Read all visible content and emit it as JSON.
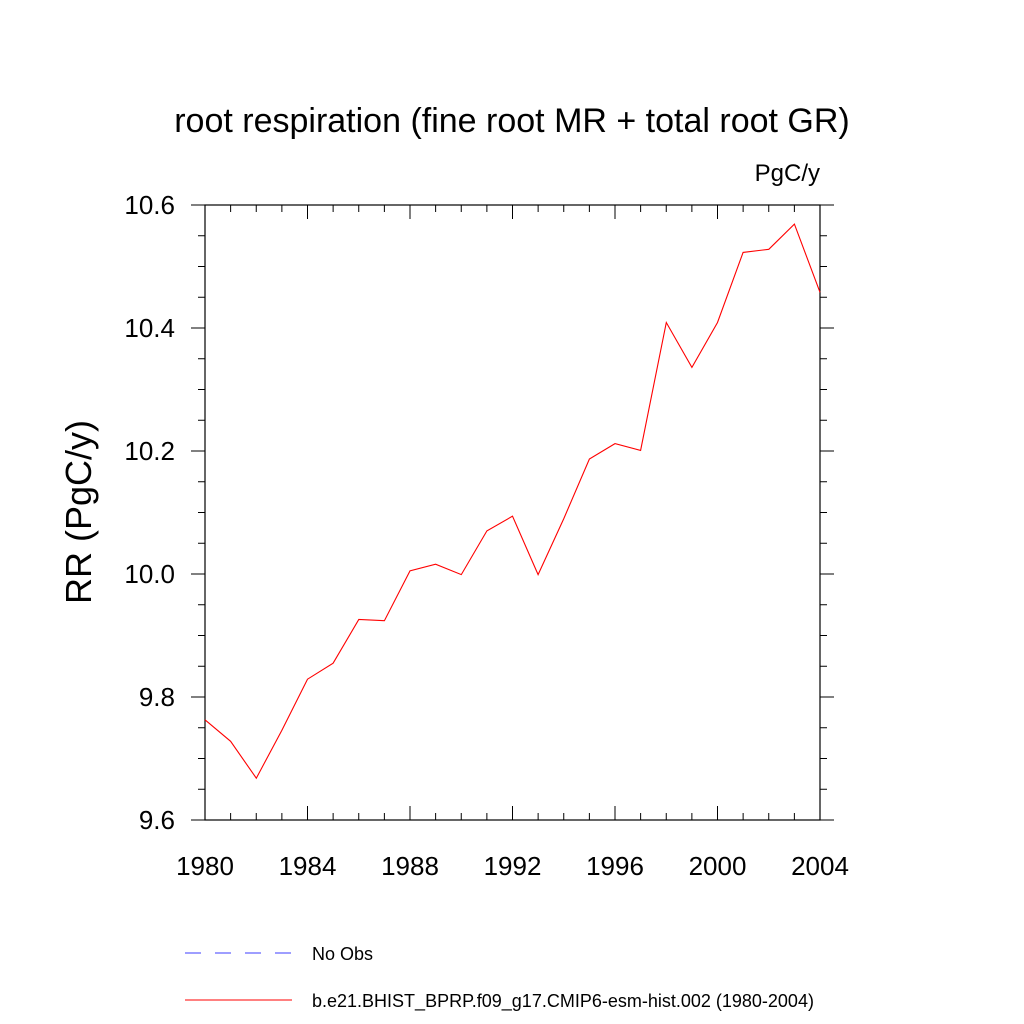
{
  "chart_data": {
    "type": "line",
    "title": "root respiration (fine root MR + total root GR)",
    "units": "PgC/y",
    "ylabel": "RR  (PgC/y)",
    "xlabel": "",
    "xlim": [
      1980,
      2004
    ],
    "ylim": [
      9.6,
      10.6
    ],
    "x_ticks": [
      1980,
      1984,
      1988,
      1992,
      1996,
      2000,
      2004
    ],
    "x_tick_labels": [
      "1980",
      "1984",
      "1988",
      "1992",
      "1996",
      "2000",
      "2004"
    ],
    "y_ticks": [
      9.6,
      9.8,
      10.0,
      10.2,
      10.4,
      10.6
    ],
    "y_tick_labels": [
      "9.6",
      "9.8",
      "10.0",
      "10.2",
      "10.4",
      "10.6"
    ],
    "grid": false,
    "legend_position": "bottom",
    "series": [
      {
        "name": "b.e21.BHIST_BPRP.f09_g17.CMIP6-esm-hist.002 (1980-2004)",
        "color": "#ff0000",
        "style": "solid",
        "x": [
          1980,
          1981,
          1982,
          1983,
          1984,
          1985,
          1986,
          1987,
          1988,
          1989,
          1990,
          1991,
          1992,
          1993,
          1994,
          1995,
          1996,
          1997,
          1998,
          1999,
          2000,
          2001,
          2002,
          2003,
          2004
        ],
        "y": [
          9.763,
          9.728,
          9.668,
          9.746,
          9.829,
          9.855,
          9.926,
          9.924,
          10.005,
          10.016,
          9.999,
          10.07,
          10.094,
          9.999,
          10.09,
          10.187,
          10.212,
          10.201,
          10.409,
          10.336,
          10.409,
          10.523,
          10.528,
          10.569,
          10.458
        ]
      },
      {
        "name": "No Obs",
        "color": "#3c3cff",
        "style": "dashed",
        "x": [],
        "y": []
      }
    ],
    "legend": [
      {
        "label": "No Obs",
        "color": "#3c3cff",
        "style": "dashed"
      },
      {
        "label": "b.e21.BHIST_BPRP.f09_g17.CMIP6-esm-hist.002 (1980-2004)",
        "color": "#ff0000",
        "style": "solid"
      }
    ]
  }
}
